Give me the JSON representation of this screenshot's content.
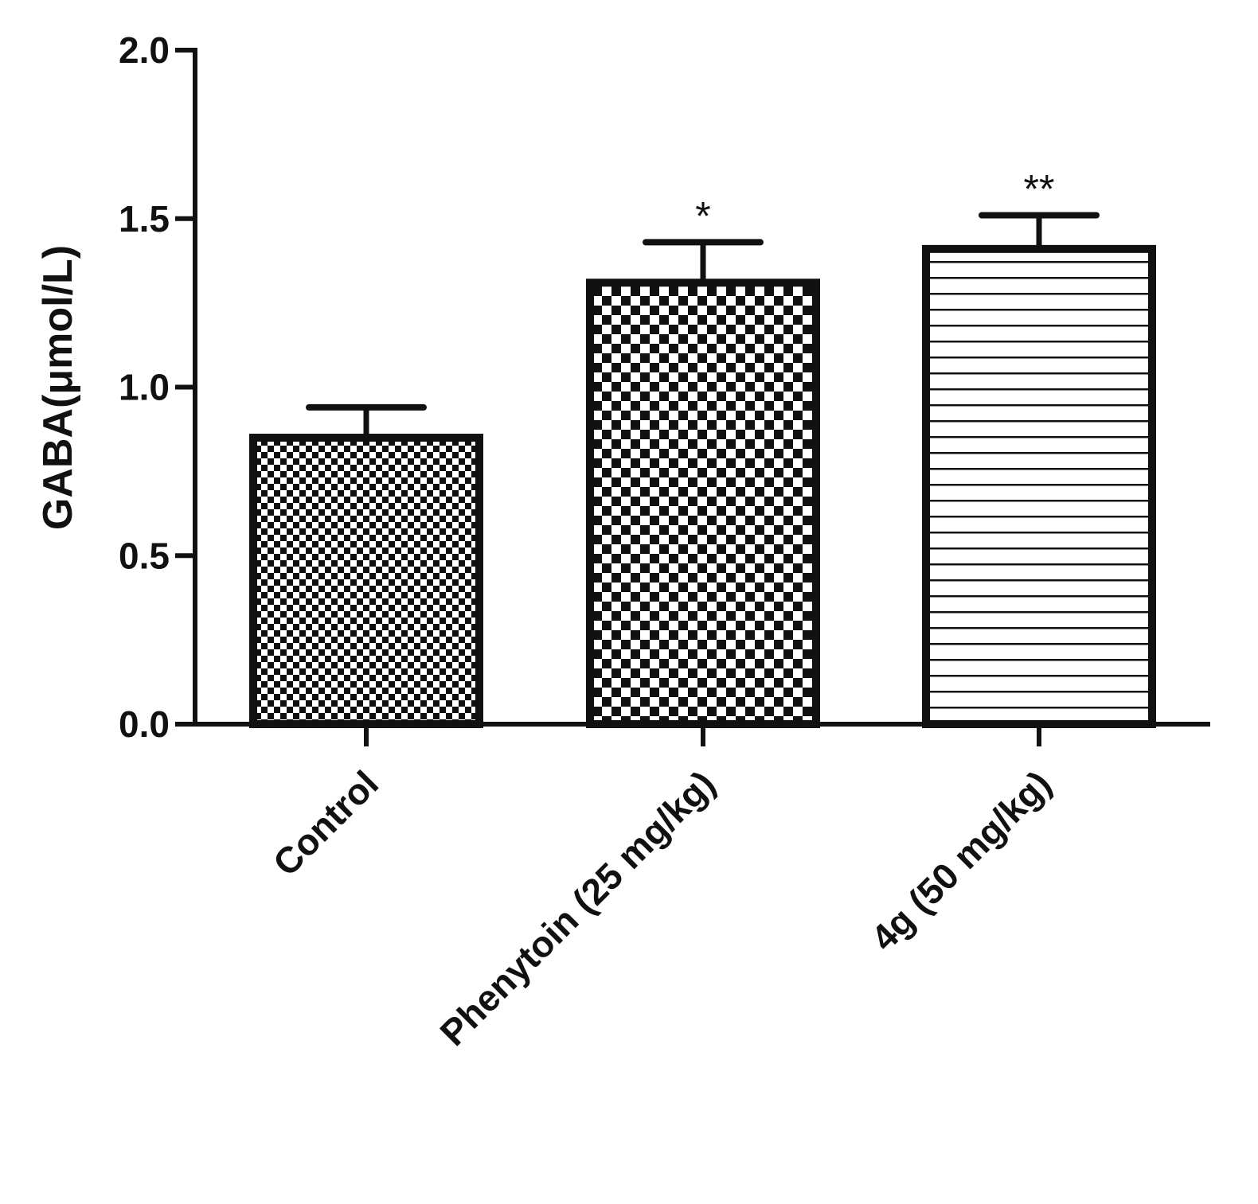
{
  "chart_data": {
    "type": "bar",
    "title": "",
    "xlabel": "",
    "ylabel": "GABA(μmol/L)",
    "ylim": [
      0,
      2.0
    ],
    "yticks": [
      "0.0",
      "0.5",
      "1.0",
      "1.5",
      "2.0"
    ],
    "ytick_values": [
      0,
      0.5,
      1.0,
      1.5,
      2.0
    ],
    "categories": [
      "Control",
      "Phenytoin (25 mg/kg)",
      "4g (50 mg/kg)"
    ],
    "values": [
      0.85,
      1.31,
      1.41
    ],
    "error": [
      0.09,
      0.12,
      0.1
    ],
    "significance": [
      "",
      "*",
      "**"
    ],
    "patterns": [
      "fine-checker",
      "coarse-checker",
      "horizontal-lines"
    ],
    "grid": false,
    "legend": "none",
    "colors": {
      "ink": "#111111",
      "background": "#ffffff"
    }
  }
}
